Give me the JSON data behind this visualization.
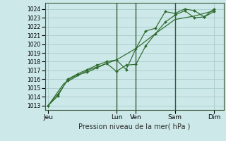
{
  "background_color": "#cce8e8",
  "grid_color": "#aacccc",
  "line_color": "#2d6a2d",
  "marker_color": "#2d6a2d",
  "title": "Pression niveau de la mer( hPa )",
  "ylim": [
    1012.5,
    1024.7
  ],
  "yticks": [
    1013,
    1014,
    1015,
    1016,
    1017,
    1018,
    1019,
    1020,
    1021,
    1022,
    1023,
    1024
  ],
  "xtick_labels": [
    "Jeu",
    "Lun",
    "Ven",
    "Sam",
    "Dim"
  ],
  "xtick_positions": [
    0,
    3.5,
    4.5,
    6.5,
    8.5
  ],
  "vlines": [
    3.5,
    4.5,
    6.5
  ],
  "xlim": [
    -0.15,
    9.0
  ],
  "series1_x": [
    0,
    0.5,
    1.0,
    1.5,
    2.0,
    2.5,
    3.0,
    3.5,
    4.0,
    4.5,
    5.0,
    5.5,
    6.0,
    6.5,
    7.0,
    7.5,
    8.0,
    8.5
  ],
  "series1_y": [
    1013.0,
    1014.1,
    1016.0,
    1016.6,
    1017.1,
    1017.6,
    1018.0,
    1018.2,
    1017.1,
    1019.5,
    1021.5,
    1021.8,
    1023.7,
    1023.5,
    1024.0,
    1023.8,
    1023.1,
    1024.0
  ],
  "series2_x": [
    0,
    0.5,
    1.0,
    1.5,
    2.0,
    2.5,
    3.0,
    3.5,
    4.0,
    4.5,
    5.0,
    5.5,
    6.0,
    6.5,
    7.0,
    7.5,
    8.0,
    8.5
  ],
  "series2_y": [
    1013.0,
    1014.3,
    1015.9,
    1016.5,
    1016.8,
    1017.3,
    1017.8,
    1016.9,
    1017.6,
    1017.7,
    1019.8,
    1021.2,
    1022.5,
    1023.3,
    1023.8,
    1023.0,
    1023.1,
    1023.7
  ],
  "series3_x": [
    0,
    0.8,
    2.0,
    3.5,
    4.5,
    5.5,
    6.5,
    7.5,
    8.5
  ],
  "series3_y": [
    1013.0,
    1015.5,
    1017.0,
    1018.2,
    1019.5,
    1021.2,
    1022.8,
    1023.2,
    1023.8
  ]
}
